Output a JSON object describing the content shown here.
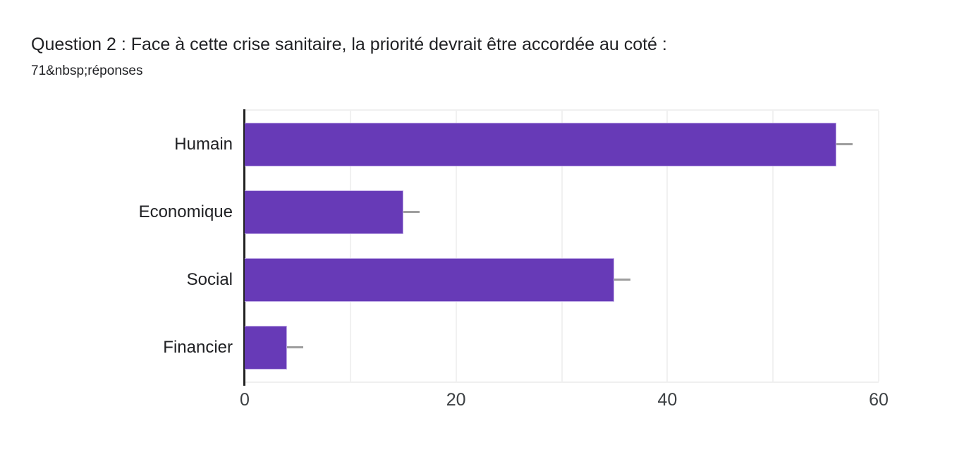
{
  "header": {
    "title": "Question 2 : Face à cette crise sanitaire, la priorité devrait être accordée au coté :",
    "responses_label": "71&nbsp;réponses"
  },
  "chart_data": {
    "type": "bar",
    "orientation": "horizontal",
    "title": "Question 2 : Face à cette crise sanitaire, la priorité devrait être accordée au coté :",
    "subtitle": "71&nbsp;réponses",
    "categories": [
      "Humain",
      "Economique",
      "Social",
      "Financier"
    ],
    "values": [
      56,
      15,
      35,
      4
    ],
    "xlabel": "",
    "ylabel": "",
    "xlim": [
      0,
      60
    ],
    "x_ticks": [
      0,
      20,
      40,
      60
    ],
    "gridline_step": 10,
    "grid": true,
    "legend": "none",
    "colors": {
      "bar": "#673ab7",
      "bar_edge": "#c0abe6",
      "whisker": "#9e9e9e",
      "gridline": "#f1f1f1",
      "plot_border": "#f0f0f0",
      "axis_line": "#212121",
      "tick_label": "#3c4043",
      "category_label": "#202124",
      "title_text": "#202124",
      "background": "#ffffff"
    }
  }
}
